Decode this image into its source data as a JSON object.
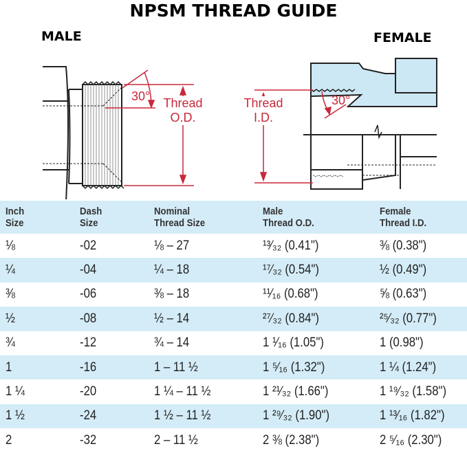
{
  "title": "NPSM THREAD GUIDE",
  "diagram": {
    "male_label": "MALE",
    "female_label": "FEMALE",
    "male_angle": "30°",
    "male_dim_line1": "Thread",
    "male_dim_line2": "O.D.",
    "female_angle": "30°",
    "female_dim_line1": "Thread",
    "female_dim_line2": "I.D.",
    "colors": {
      "dimension": "#c8283a",
      "fitting_fill": "#cde8f5",
      "outline": "#222222"
    }
  },
  "table": {
    "headers": [
      [
        "Inch",
        "Size"
      ],
      [
        "Dash",
        "Size"
      ],
      [
        "Nominal",
        "Thread Size"
      ],
      [
        "Male",
        "Thread O.D."
      ],
      [
        "Female",
        "Thread I.D."
      ]
    ],
    "rows": [
      [
        "⅛",
        "-02",
        "⅛ – 27",
        "¹³⁄₃₂ (0.41\")",
        "⅜ (0.38\")"
      ],
      [
        "¼",
        "-04",
        "¼ – 18",
        "¹⁷⁄₃₂ (0.54\")",
        "½ (0.49\")"
      ],
      [
        "⅜",
        "-06",
        "⅜ – 18",
        "¹¹⁄₁₆ (0.68\")",
        "⅝ (0.63\")"
      ],
      [
        "½",
        "-08",
        "½ – 14",
        "²⁷⁄₃₂ (0.84\")",
        "²⁵⁄₃₂ (0.77\")"
      ],
      [
        "¾",
        "-12",
        "¾ – 14",
        "1 ¹⁄₁₆ (1.05\")",
        "1 (0.98\")"
      ],
      [
        "1",
        "-16",
        "1 – 11 ½",
        "1 ⁵⁄₁₆ (1.32\")",
        "1 ¼ (1.24\")"
      ],
      [
        "1 ¼",
        "-20",
        "1 ¼ – 11 ½",
        "1 ²¹⁄₃₂ (1.66\")",
        "1 ¹⁹⁄₃₂ (1.58\")"
      ],
      [
        "1 ½",
        "-24",
        "1 ½ – 11 ½",
        "1 ²⁹⁄₃₂ (1.90\")",
        "1 ¹³⁄₁₆ (1.82\")"
      ],
      [
        "2",
        "-32",
        "2 – 11 ½",
        "2 ⅜ (2.38\")",
        "2 ⁵⁄₁₆ (2.30\")"
      ]
    ]
  }
}
